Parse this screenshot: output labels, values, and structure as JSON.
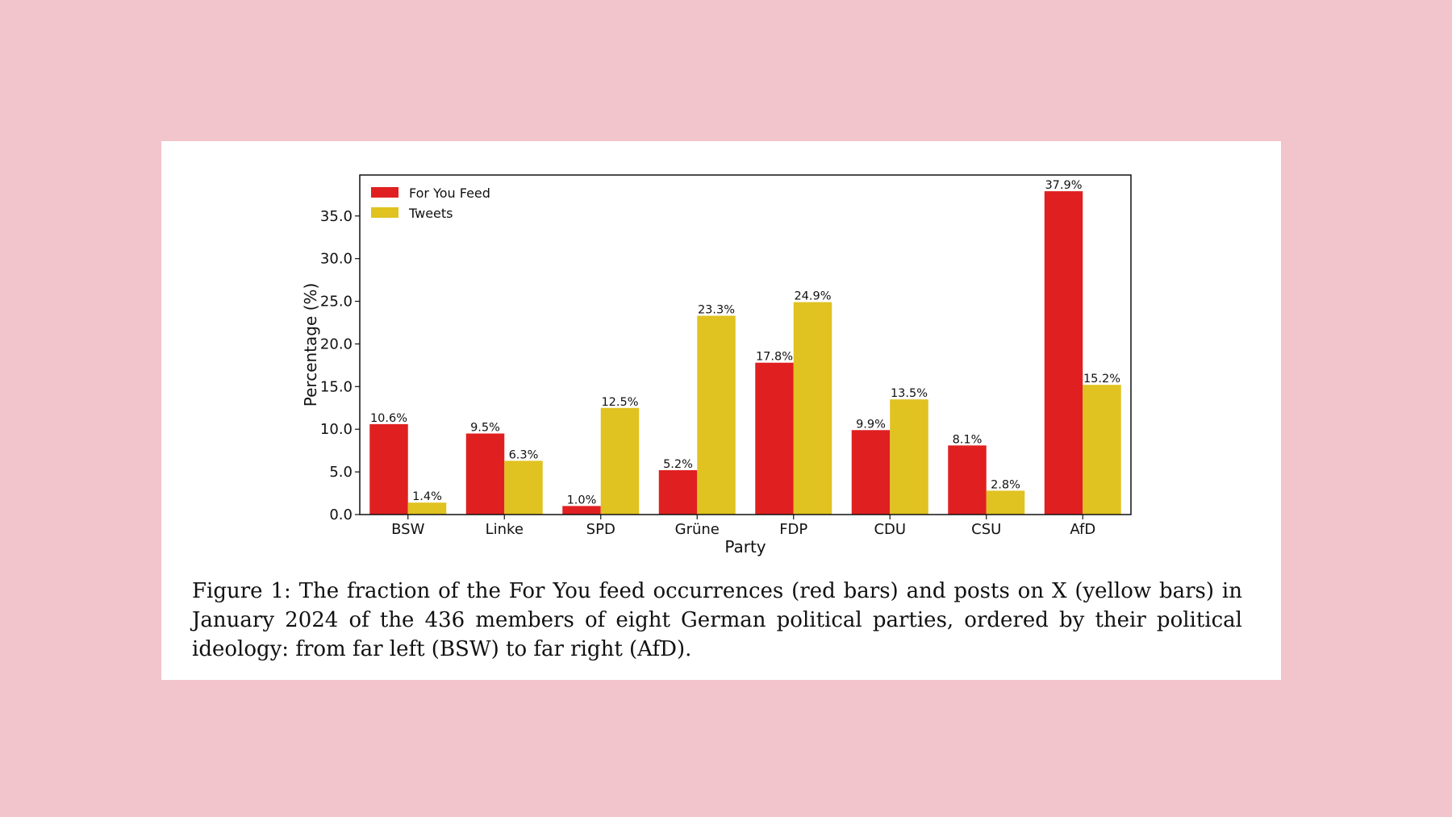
{
  "figure": {
    "caption": "Figure 1:  The fraction of the For You feed occurrences (red bars) and posts on X (yellow bars) in January 2024 of the 436 members of eight German political parties, ordered by their political ideology: from far left (BSW) to far right (AfD)."
  },
  "colors": {
    "background": "#f2c4cb",
    "for_you_feed": "#e02020",
    "tweets": "#e0c220"
  },
  "chart_data": {
    "type": "bar",
    "title": "",
    "xlabel": "Party",
    "ylabel": "Percentage (%)",
    "categories": [
      "BSW",
      "Linke",
      "SPD",
      "Grüne",
      "FDP",
      "CDU",
      "CSU",
      "AfD"
    ],
    "series": [
      {
        "name": "For You Feed",
        "color": "#e02020",
        "values": [
          10.6,
          9.5,
          1.0,
          5.2,
          17.8,
          9.9,
          8.1,
          37.9
        ],
        "labels": [
          "10.6%",
          "9.5%",
          "1.0%",
          "5.2%",
          "17.8%",
          "9.9%",
          "8.1%",
          "37.9%"
        ]
      },
      {
        "name": "Tweets",
        "color": "#e0c220",
        "values": [
          1.4,
          6.3,
          12.5,
          23.3,
          24.9,
          13.5,
          2.8,
          15.2
        ],
        "labels": [
          "1.4%",
          "6.3%",
          "12.5%",
          "23.3%",
          "24.9%",
          "13.5%",
          "2.8%",
          "15.2%"
        ]
      }
    ],
    "yticks": [
      "0.0",
      "5.0",
      "10.0",
      "15.0",
      "20.0",
      "25.0",
      "30.0",
      "35.0"
    ],
    "ylim": [
      0,
      39.8
    ],
    "legend_position": "top-left",
    "grid": false
  }
}
